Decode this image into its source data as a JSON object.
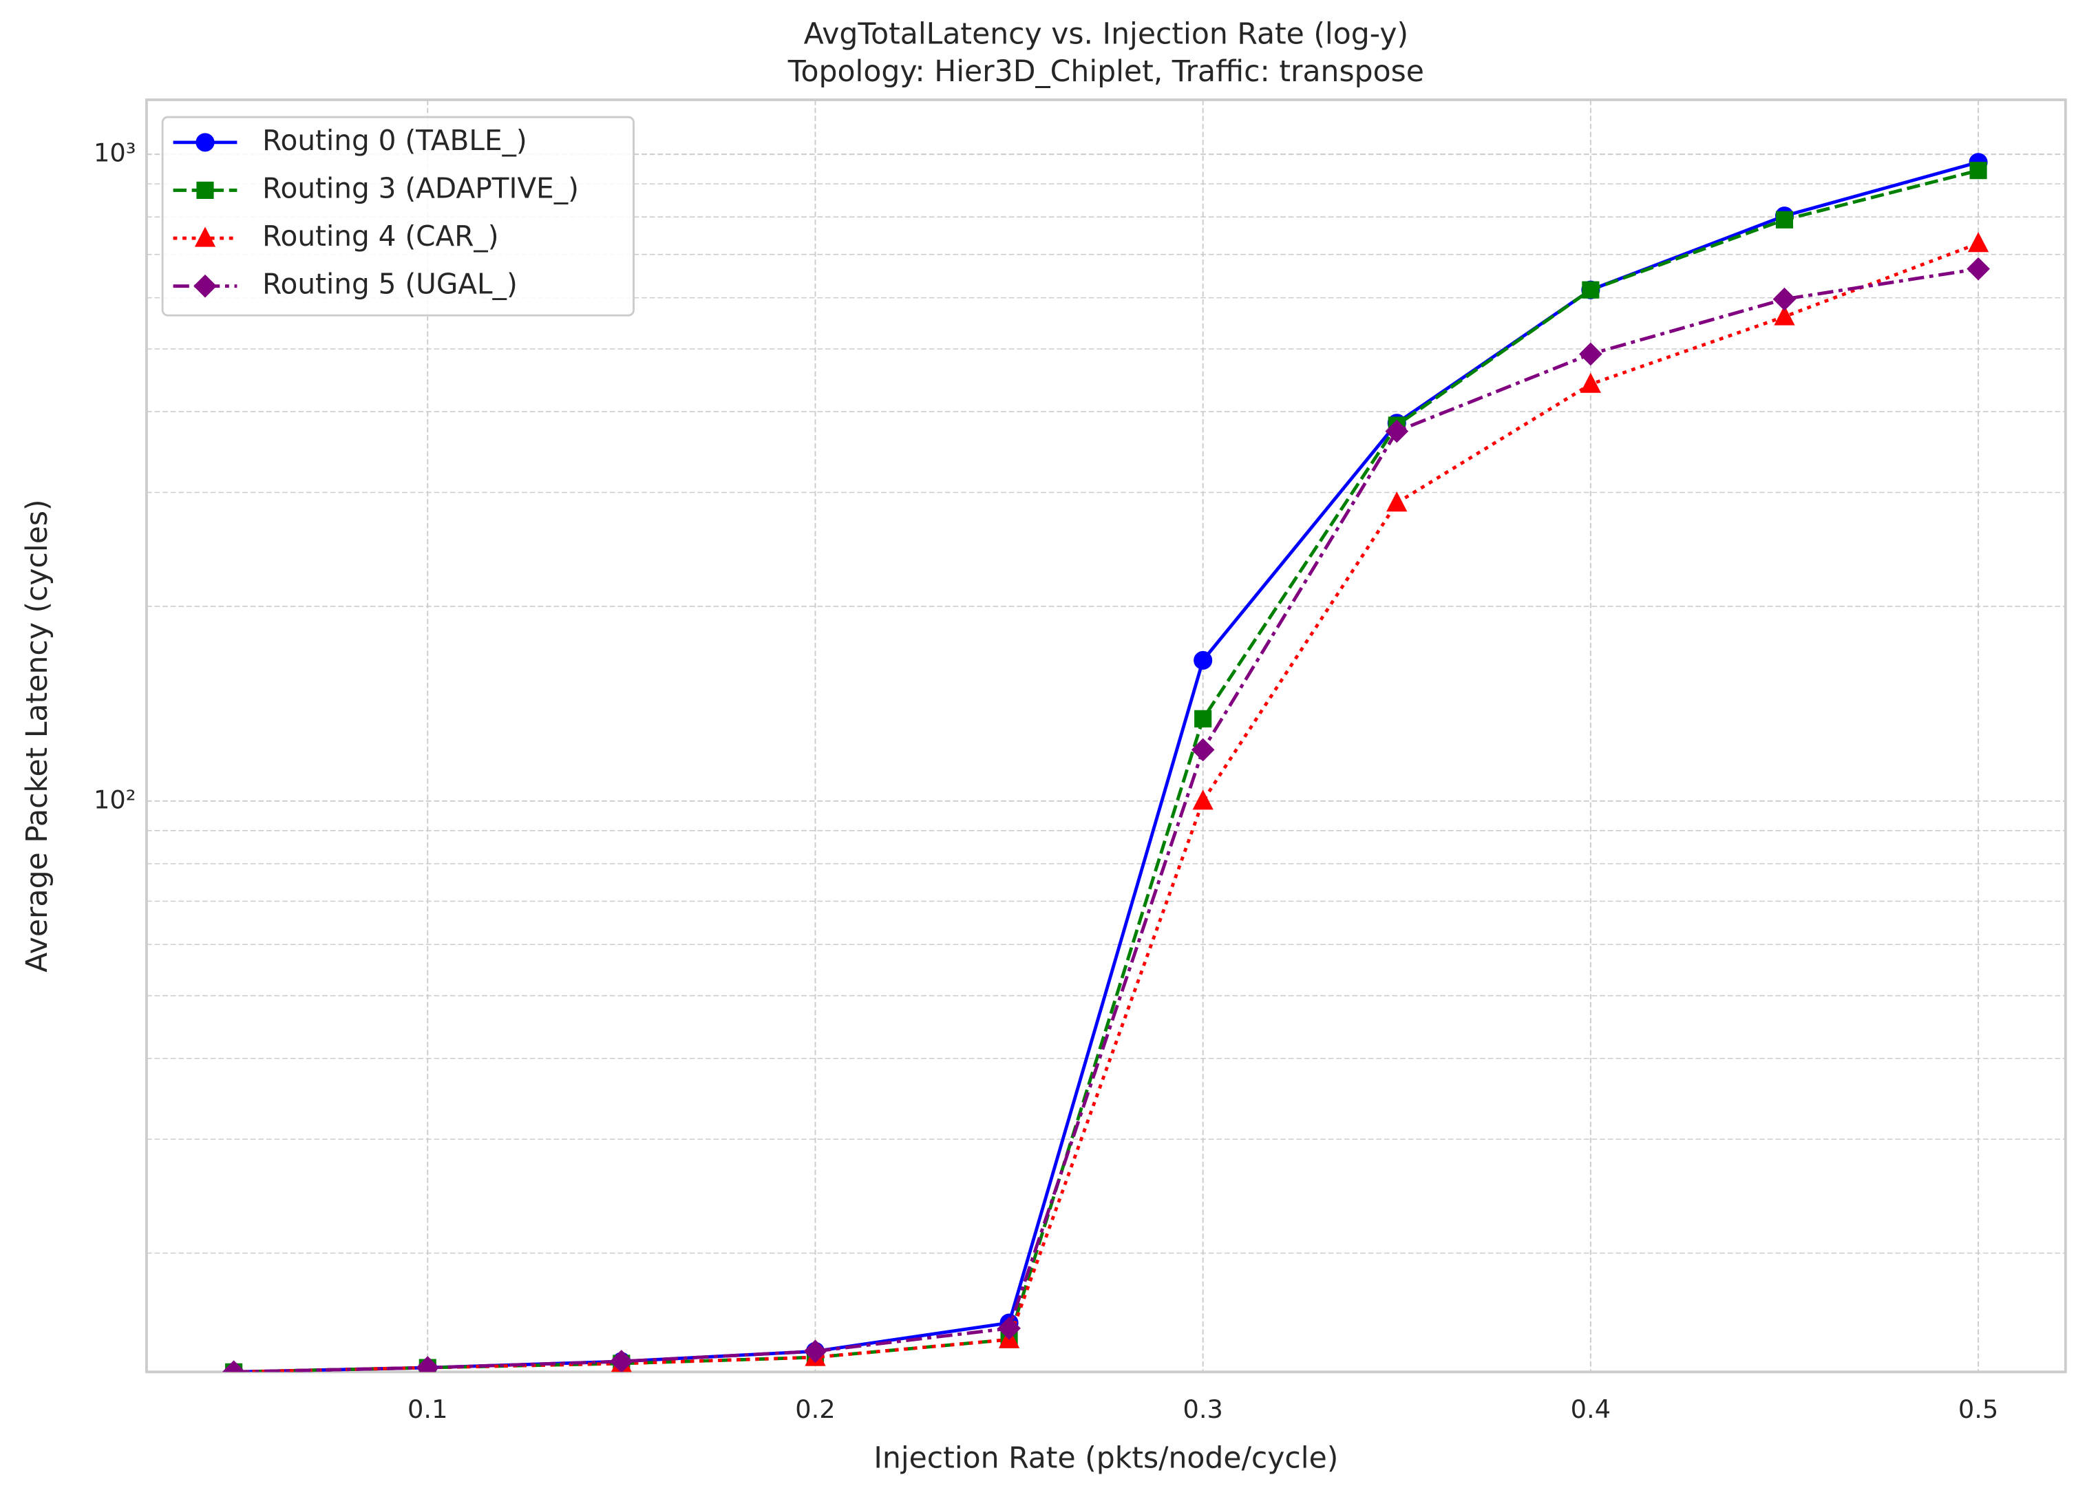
{
  "chart_data": {
    "type": "line",
    "title": "AvgTotalLatency vs. Injection Rate (log-y)",
    "subtitle": "Topology: Hier3D_Chiplet, Traffic: transpose",
    "x_label": "Injection Rate (pkts/node/cycle)",
    "y_label": "Average Packet Latency (cycles)",
    "x": [
      0.05,
      0.1,
      0.15,
      0.2,
      0.25,
      0.3,
      0.35,
      0.4,
      0.45,
      0.5
    ],
    "series": [
      {
        "name": "Routing 0 (TABLE_)",
        "color": "#0000ff",
        "marker": "circle",
        "linestyle": "solid",
        "values": [
          13.1,
          13.3,
          13.6,
          14.1,
          15.6,
          165,
          384,
          617,
          803,
          972
        ]
      },
      {
        "name": "Routing 3 (ADAPTIVE_)",
        "color": "#008000",
        "marker": "square",
        "linestyle": "dashed",
        "values": [
          13.1,
          13.3,
          13.5,
          13.8,
          14.7,
          134,
          381,
          617,
          792,
          944
        ]
      },
      {
        "name": "Routing 4 (CAR_)",
        "color": "#ff0000",
        "marker": "triangle",
        "linestyle": "dotted",
        "values": [
          13.1,
          13.3,
          13.5,
          13.8,
          14.7,
          100,
          289,
          441,
          561,
          728
        ]
      },
      {
        "name": "Routing 5 (UGAL_)",
        "color": "#800080",
        "marker": "diamond",
        "linestyle": "dashdot",
        "values": [
          13.1,
          13.3,
          13.6,
          14.1,
          15.3,
          120,
          373,
          491,
          597,
          665
        ]
      }
    ],
    "xlim": [
      0.0275,
      0.5225
    ],
    "xticks": [
      0.1,
      0.2,
      0.3,
      0.4,
      0.5
    ],
    "ylim": [
      13.1,
      1214
    ],
    "yscale": "log",
    "yticks": [
      {
        "value": 100,
        "label": "10²"
      },
      {
        "value": 1000,
        "label": "10³"
      }
    ],
    "yminorticks": [
      20,
      30,
      40,
      50,
      60,
      70,
      80,
      90,
      200,
      300,
      400,
      500,
      600,
      700,
      800,
      900
    ],
    "grid": true,
    "legend": "upper left"
  }
}
